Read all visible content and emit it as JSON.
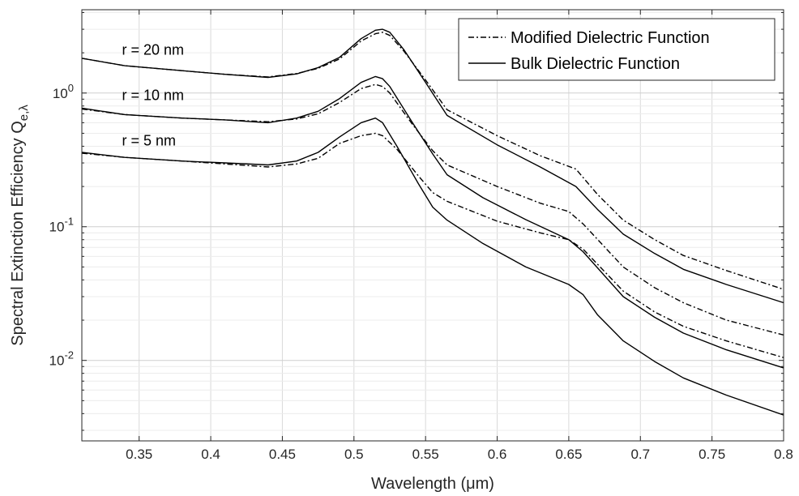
{
  "chart_data": {
    "type": "line",
    "xlabel_main": "Wavelength (",
    "xlabel_mu": "μ",
    "xlabel_tail": "m)",
    "ylabel_main": "Spectral Extinction Efficiency Q",
    "ylabel_sub": "e,λ",
    "xlim": [
      0.31,
      0.8
    ],
    "ylim": [
      0.0025,
      4.2
    ],
    "yscale": "log",
    "grid": true,
    "legend_position": "top-right",
    "xticks": [
      0.35,
      0.4,
      0.45,
      0.5,
      0.55,
      0.6,
      0.65,
      0.7,
      0.75,
      0.8
    ],
    "xtick_labels": [
      "0.35",
      "0.4",
      "0.45",
      "0.5",
      "0.55",
      "0.6",
      "0.65",
      "0.7",
      "0.75",
      "0.8"
    ],
    "yticks": [
      {
        "value": 0.01,
        "base": "10",
        "exp": "-2"
      },
      {
        "value": 0.1,
        "base": "10",
        "exp": "-1"
      },
      {
        "value": 1,
        "base": "10",
        "exp": "0"
      }
    ],
    "legend": [
      {
        "label": "Modified Dielectric Function",
        "style": "dashdot"
      },
      {
        "label": "Bulk Dielectric Function",
        "style": "solid"
      }
    ],
    "annotations": [
      {
        "text": "r = 20 nm",
        "x": 0.338,
        "y": 2.1
      },
      {
        "text": "r = 10 nm",
        "x": 0.338,
        "y": 0.96
      },
      {
        "text": "r = 5 nm",
        "x": 0.338,
        "y": 0.44
      }
    ],
    "series": [
      {
        "style": "solid",
        "x": [
          0.31,
          0.34,
          0.38,
          0.41,
          0.44,
          0.46,
          0.475,
          0.49,
          0.505,
          0.515,
          0.52,
          0.525,
          0.535,
          0.55,
          0.565,
          0.6,
          0.63,
          0.655,
          0.67,
          0.688,
          0.71,
          0.73,
          0.76,
          0.8
        ],
        "y": [
          1.82,
          1.6,
          1.47,
          1.38,
          1.31,
          1.39,
          1.55,
          1.85,
          2.55,
          2.95,
          3.0,
          2.85,
          2.1,
          1.2,
          0.68,
          0.41,
          0.28,
          0.2,
          0.135,
          0.088,
          0.063,
          0.048,
          0.037,
          0.027
        ]
      },
      {
        "style": "dashdot",
        "x": [
          0.31,
          0.34,
          0.38,
          0.41,
          0.44,
          0.46,
          0.475,
          0.49,
          0.505,
          0.515,
          0.52,
          0.525,
          0.535,
          0.55,
          0.565,
          0.6,
          0.63,
          0.655,
          0.67,
          0.688,
          0.71,
          0.73,
          0.76,
          0.8
        ],
        "y": [
          1.82,
          1.6,
          1.47,
          1.38,
          1.32,
          1.4,
          1.53,
          1.8,
          2.45,
          2.78,
          2.85,
          2.7,
          2.05,
          1.25,
          0.75,
          0.48,
          0.34,
          0.27,
          0.175,
          0.112,
          0.08,
          0.061,
          0.047,
          0.034
        ]
      },
      {
        "style": "solid",
        "x": [
          0.31,
          0.34,
          0.38,
          0.41,
          0.44,
          0.46,
          0.475,
          0.49,
          0.505,
          0.515,
          0.52,
          0.525,
          0.54,
          0.555,
          0.565,
          0.59,
          0.62,
          0.65,
          0.66,
          0.688,
          0.71,
          0.73,
          0.76,
          0.8
        ],
        "y": [
          0.77,
          0.69,
          0.65,
          0.63,
          0.6,
          0.65,
          0.73,
          0.91,
          1.2,
          1.33,
          1.28,
          1.12,
          0.62,
          0.35,
          0.245,
          0.165,
          0.113,
          0.08,
          0.065,
          0.03,
          0.021,
          0.016,
          0.012,
          0.0088
        ]
      },
      {
        "style": "dashdot",
        "x": [
          0.31,
          0.34,
          0.38,
          0.41,
          0.44,
          0.46,
          0.475,
          0.49,
          0.505,
          0.515,
          0.52,
          0.525,
          0.54,
          0.555,
          0.565,
          0.6,
          0.63,
          0.65,
          0.66,
          0.688,
          0.71,
          0.73,
          0.76,
          0.8
        ],
        "y": [
          0.76,
          0.69,
          0.65,
          0.63,
          0.61,
          0.64,
          0.7,
          0.85,
          1.08,
          1.16,
          1.12,
          1.0,
          0.6,
          0.37,
          0.29,
          0.2,
          0.15,
          0.13,
          0.105,
          0.05,
          0.035,
          0.027,
          0.02,
          0.0155
        ]
      },
      {
        "style": "solid",
        "x": [
          0.31,
          0.34,
          0.38,
          0.41,
          0.44,
          0.46,
          0.475,
          0.49,
          0.505,
          0.515,
          0.52,
          0.53,
          0.545,
          0.555,
          0.565,
          0.59,
          0.62,
          0.65,
          0.66,
          0.67,
          0.688,
          0.71,
          0.73,
          0.76,
          0.8
        ],
        "y": [
          0.36,
          0.33,
          0.31,
          0.3,
          0.29,
          0.31,
          0.36,
          0.47,
          0.6,
          0.65,
          0.6,
          0.4,
          0.21,
          0.14,
          0.112,
          0.075,
          0.05,
          0.037,
          0.031,
          0.022,
          0.014,
          0.0098,
          0.0074,
          0.0055,
          0.0039
        ]
      },
      {
        "style": "dashdot",
        "x": [
          0.31,
          0.34,
          0.38,
          0.41,
          0.44,
          0.46,
          0.475,
          0.49,
          0.505,
          0.515,
          0.52,
          0.53,
          0.545,
          0.555,
          0.565,
          0.6,
          0.63,
          0.65,
          0.66,
          0.688,
          0.71,
          0.73,
          0.76,
          0.8
        ],
        "y": [
          0.355,
          0.33,
          0.31,
          0.295,
          0.28,
          0.295,
          0.325,
          0.42,
          0.48,
          0.5,
          0.48,
          0.38,
          0.24,
          0.18,
          0.155,
          0.11,
          0.09,
          0.08,
          0.068,
          0.033,
          0.023,
          0.018,
          0.014,
          0.0105
        ]
      }
    ]
  }
}
